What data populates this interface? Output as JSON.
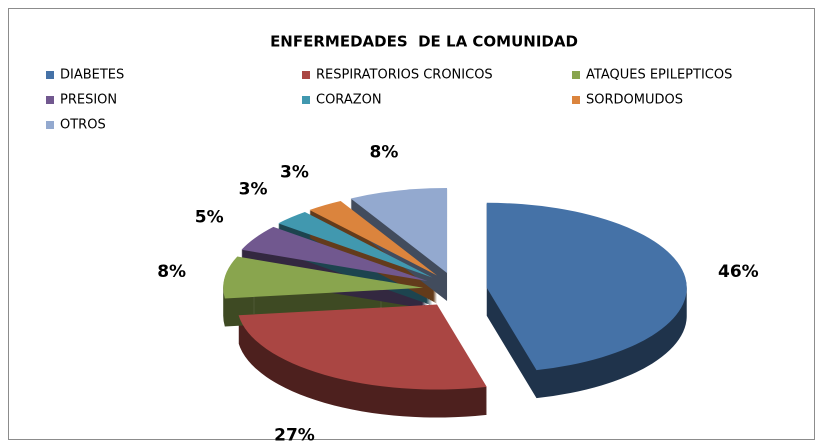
{
  "chart_data": {
    "type": "pie",
    "title": "ENFERMEDADES  DE LA COMUNIDAD",
    "categories": [
      "DIABETES",
      "RESPIRATORIOS CRONICOS",
      "ATAQUES EPILEPTICOS",
      "PRESION",
      "CORAZON",
      "SORDOMUDOS",
      "OTROS"
    ],
    "values": [
      46,
      27,
      8,
      5,
      3,
      3,
      8
    ],
    "value_labels": [
      "46%",
      "27%",
      "8%",
      "5%",
      "3%",
      "3%",
      "8%"
    ],
    "colors": [
      "#4572a7",
      "#aa4643",
      "#89a54e",
      "#71588f",
      "#4198af",
      "#db843d",
      "#93a9cf"
    ],
    "legend": "top"
  }
}
